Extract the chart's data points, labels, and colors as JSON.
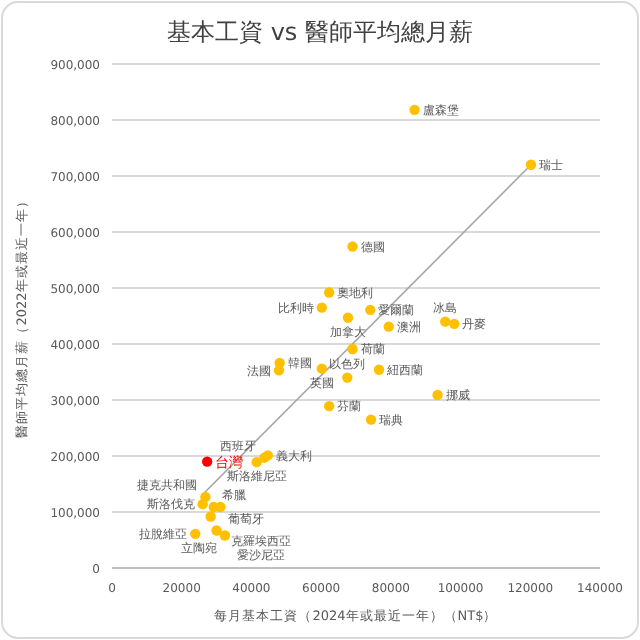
{
  "chart_data": {
    "type": "scatter",
    "title": "基本工資 vs 醫師平均總月薪",
    "xlabel": "每月基本工資（2024年或最近一年）（NT$）",
    "ylabel": "醫師平均總月薪（2022年或最近一年）",
    "xlim": [
      0,
      140000
    ],
    "xticks": [
      0,
      20000,
      40000,
      60000,
      80000,
      100000,
      120000,
      140000
    ],
    "ylim": [
      0,
      900000
    ],
    "yticks": [
      0,
      {
        "value": 100000,
        "label": "100,000"
      },
      {
        "value": 200000,
        "label": "200,000"
      },
      {
        "value": 300000,
        "label": "300,000"
      },
      {
        "value": 400000,
        "label": "400,000"
      },
      {
        "value": 500000,
        "label": "500,000"
      },
      {
        "value": 600000,
        "label": "600,000"
      },
      {
        "value": 700000,
        "label": "700,000"
      },
      {
        "value": 800000,
        "label": "800,000"
      },
      {
        "value": 900000,
        "label": "900,000"
      }
    ],
    "grid": "y",
    "series": [
      {
        "marker": "circle",
        "x": [
          86800,
          120200,
          69000,
          62300,
          60200,
          67700,
          74100,
          79400,
          95600,
          98200,
          69000,
          48100,
          47900,
          60200,
          67500,
          76600,
          93400,
          62300,
          74300,
          41500,
          44700,
          43700,
          27300,
          26800,
          26000,
          29200,
          31100,
          28300,
          23900,
          32400,
          30000
        ],
        "values": [
          818000,
          720000,
          574000,
          492000,
          465000,
          447000,
          461000,
          431000,
          440000,
          436000,
          391000,
          366000,
          353000,
          356000,
          340000,
          354000,
          309000,
          289000,
          265000,
          189000,
          201000,
          197000,
          190000,
          127000,
          114000,
          109000,
          109000,
          92000,
          61000,
          58000,
          67000
        ],
        "colors": [
          "#ffc000",
          "#ffc000",
          "#ffc000",
          "#ffc000",
          "#ffc000",
          "#ffc000",
          "#ffc000",
          "#ffc000",
          "#ffc000",
          "#ffc000",
          "#ffc000",
          "#ffc000",
          "#ffc000",
          "#ffc000",
          "#ffc000",
          "#ffc000",
          "#ffc000",
          "#ffc000",
          "#ffc000",
          "#ffc000",
          "#ffc000",
          "#ffc000",
          "#ff0000",
          "#ffc000",
          "#ffc000",
          "#ffc000",
          "#ffc000",
          "#ffc000",
          "#ffc000",
          "#ffc000",
          "#ffc000"
        ]
      },
      {
        "type": "line",
        "color": "#a6a6a6",
        "x": [
          25800,
          120200
        ],
        "values": [
          130000,
          720000
        ]
      }
    ],
    "annotations": [
      {
        "text": "盧森堡",
        "x": 86800,
        "y": 818000
      },
      {
        "text": "瑞士",
        "x": 120200,
        "y": 720000
      },
      {
        "text": "德國",
        "x": 69000,
        "y": 574000
      },
      {
        "text": "奧地利",
        "x": 62300,
        "y": 492000
      },
      {
        "text": "比利時",
        "x": 60200,
        "y": 465000
      },
      {
        "text": "加拿大",
        "x": 67700,
        "y": 447000
      },
      {
        "text": "愛爾蘭",
        "x": 74100,
        "y": 461000
      },
      {
        "text": "澳洲",
        "x": 79400,
        "y": 431000
      },
      {
        "text": "冰島",
        "x": 95600,
        "y": 440000
      },
      {
        "text": "丹麥",
        "x": 98200,
        "y": 436000
      },
      {
        "text": "荷蘭",
        "x": 69000,
        "y": 391000
      },
      {
        "text": "韓國",
        "x": 48100,
        "y": 366000
      },
      {
        "text": "法國",
        "x": 47900,
        "y": 353000
      },
      {
        "text": "英國",
        "x": 60200,
        "y": 356000
      },
      {
        "text": "以色列",
        "x": 67500,
        "y": 340000
      },
      {
        "text": "紐西蘭",
        "x": 76600,
        "y": 354000
      },
      {
        "text": "挪威",
        "x": 93400,
        "y": 309000
      },
      {
        "text": "芬蘭",
        "x": 62300,
        "y": 289000
      },
      {
        "text": "瑞典",
        "x": 74300,
        "y": 265000
      },
      {
        "text": "斯洛維尼亞",
        "x": 41500,
        "y": 189000
      },
      {
        "text": "義大利",
        "x": 44700,
        "y": 201000
      },
      {
        "text": "西班牙",
        "x": 43700,
        "y": 197000
      },
      {
        "text": "台灣",
        "x": 27300,
        "y": 190000
      },
      {
        "text": "捷克共和國",
        "x": 26800,
        "y": 127000
      },
      {
        "text": "斯洛伐克",
        "x": 26000,
        "y": 114000
      },
      {
        "text": "希臘",
        "x": 29200,
        "y": 109000
      },
      {
        "text": "葡萄牙",
        "x": 31100,
        "y": 109000
      },
      {
        "text": "克羅埃西亞",
        "x": 28300,
        "y": 92000
      },
      {
        "text": "拉脫維亞",
        "x": 23900,
        "y": 61000
      },
      {
        "text": "立陶宛",
        "x": 32400,
        "y": 58000
      },
      {
        "text": "愛沙尼亞",
        "x": 30000,
        "y": 67000
      }
    ]
  }
}
